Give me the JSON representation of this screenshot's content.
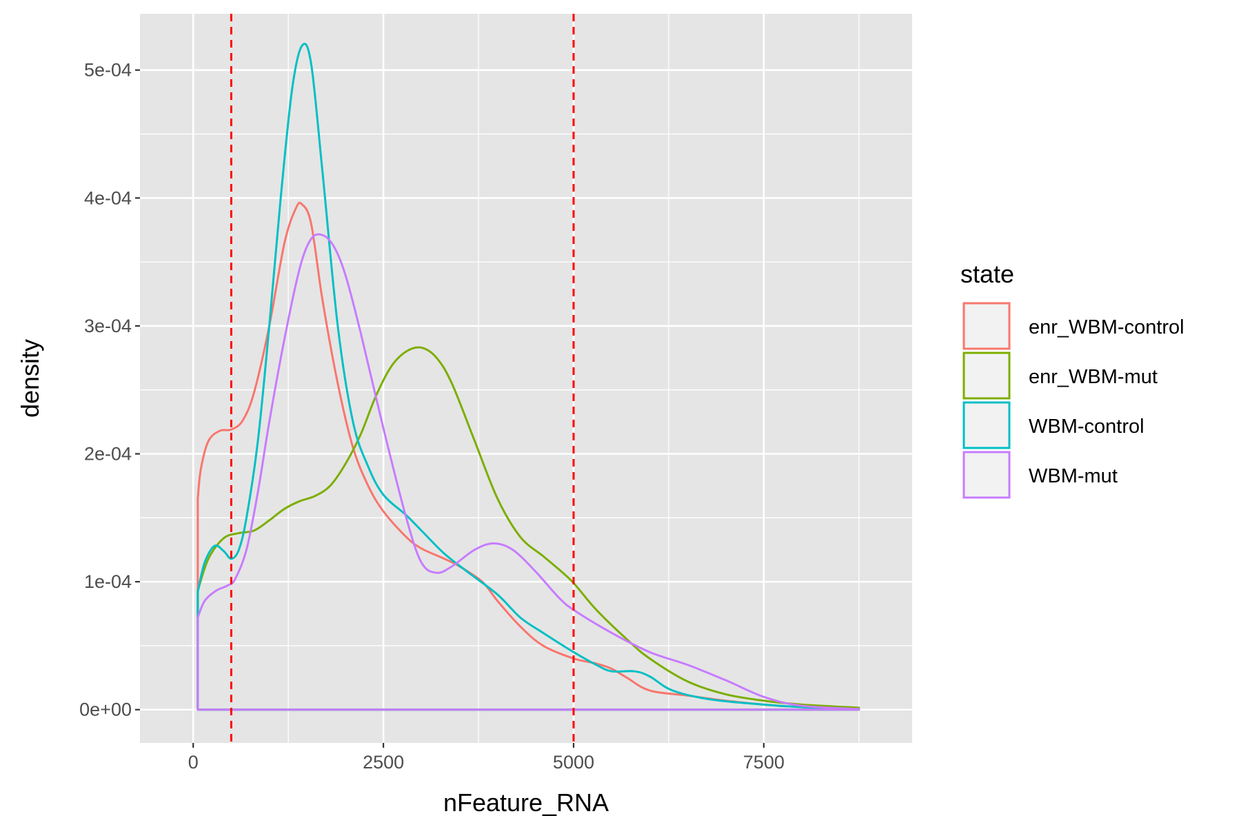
{
  "chart_data": {
    "type": "line",
    "xlabel": "nFeature_RNA",
    "ylabel": "density",
    "xlim": [
      -700,
      9450
    ],
    "ylim": [
      -2.6e-05,
      0.000544
    ],
    "x_ticks": [
      0,
      2500,
      5000,
      7500
    ],
    "x_tick_labels": [
      "0",
      "2500",
      "5000",
      "7500"
    ],
    "y_ticks": [
      0,
      0.0001,
      0.0002,
      0.0003,
      0.0004,
      0.0005
    ],
    "y_tick_labels": [
      "0e+00",
      "1e-04",
      "2e-04",
      "3e-04",
      "4e-04",
      "5e-04"
    ],
    "grid": true,
    "panel_background": "#e5e5e5",
    "legend": {
      "title": "state",
      "placement": "right",
      "entries": [
        "enr_WBM-control",
        "enr_WBM-mut",
        "WBM-control",
        "WBM-mut"
      ]
    },
    "reference_lines": {
      "color": "#ff0000",
      "style": "dashed",
      "x": [
        500,
        5000
      ]
    },
    "x_range": [
      60,
      8750
    ],
    "series": [
      {
        "name": "enr_WBM-control",
        "color": "#F8766D",
        "points": [
          [
            60,
            0.000165
          ],
          [
            100,
            0.000188
          ],
          [
            200,
            0.00021
          ],
          [
            350,
            0.000218
          ],
          [
            500,
            0.000219
          ],
          [
            650,
            0.000226
          ],
          [
            800,
            0.000248
          ],
          [
            1000,
            0.0003
          ],
          [
            1200,
            0.000365
          ],
          [
            1350,
            0.000392
          ],
          [
            1430,
            0.000395
          ],
          [
            1550,
            0.00038
          ],
          [
            1700,
            0.00032
          ],
          [
            1900,
            0.000255
          ],
          [
            2100,
            0.000205
          ],
          [
            2300,
            0.000175
          ],
          [
            2500,
            0.000155
          ],
          [
            2800,
            0.000135
          ],
          [
            3000,
            0.000126
          ],
          [
            3300,
            0.000118
          ],
          [
            3500,
            0.000112
          ],
          [
            3800,
            0.0001
          ],
          [
            4000,
            8.5e-05
          ],
          [
            4300,
            6.5e-05
          ],
          [
            4600,
            5e-05
          ],
          [
            5000,
            4e-05
          ],
          [
            5300,
            3.6e-05
          ],
          [
            5500,
            3.2e-05
          ],
          [
            5700,
            2.5e-05
          ],
          [
            6000,
            1.5e-05
          ],
          [
            6500,
            1.1e-05
          ],
          [
            7000,
            7e-06
          ],
          [
            7500,
            4e-06
          ],
          [
            8000,
            2e-06
          ],
          [
            8750,
            5e-07
          ]
        ]
      },
      {
        "name": "enr_WBM-mut",
        "color": "#7CAE00",
        "points": [
          [
            60,
            9.3e-05
          ],
          [
            200,
            0.000118
          ],
          [
            400,
            0.000134
          ],
          [
            600,
            0.000138
          ],
          [
            800,
            0.00014
          ],
          [
            1000,
            0.000148
          ],
          [
            1200,
            0.000157
          ],
          [
            1400,
            0.000163
          ],
          [
            1600,
            0.000167
          ],
          [
            1800,
            0.000175
          ],
          [
            2000,
            0.000192
          ],
          [
            2200,
            0.000215
          ],
          [
            2400,
            0.000245
          ],
          [
            2600,
            0.000268
          ],
          [
            2800,
            0.00028
          ],
          [
            3000,
            0.000283
          ],
          [
            3200,
            0.000275
          ],
          [
            3400,
            0.000255
          ],
          [
            3700,
            0.00021
          ],
          [
            4000,
            0.000165
          ],
          [
            4300,
            0.000135
          ],
          [
            4600,
            0.00012
          ],
          [
            4800,
            0.00011
          ],
          [
            5000,
            9.9e-05
          ],
          [
            5300,
            7.8e-05
          ],
          [
            5700,
            5.5e-05
          ],
          [
            6000,
            4e-05
          ],
          [
            6500,
            2.2e-05
          ],
          [
            7000,
            1.2e-05
          ],
          [
            7500,
            7e-06
          ],
          [
            8000,
            4e-06
          ],
          [
            8750,
            1.5e-06
          ]
        ]
      },
      {
        "name": "WBM-control",
        "color": "#00BFC4",
        "points": [
          [
            60,
            9.2e-05
          ],
          [
            150,
            0.000115
          ],
          [
            280,
            0.000128
          ],
          [
            400,
            0.000124
          ],
          [
            500,
            0.000118
          ],
          [
            600,
            0.000125
          ],
          [
            700,
            0.00015
          ],
          [
            850,
            0.00021
          ],
          [
            1000,
            0.0003
          ],
          [
            1150,
            0.0004
          ],
          [
            1300,
            0.000485
          ],
          [
            1430,
            0.000519
          ],
          [
            1550,
            0.000505
          ],
          [
            1700,
            0.00042
          ],
          [
            1900,
            0.0003
          ],
          [
            2100,
            0.000225
          ],
          [
            2300,
            0.00019
          ],
          [
            2500,
            0.000168
          ],
          [
            2800,
            0.000152
          ],
          [
            3000,
            0.00014
          ],
          [
            3300,
            0.000122
          ],
          [
            3600,
            0.000108
          ],
          [
            4000,
            9e-05
          ],
          [
            4300,
            7.2e-05
          ],
          [
            4600,
            6e-05
          ],
          [
            5000,
            4.5e-05
          ],
          [
            5300,
            3.5e-05
          ],
          [
            5500,
            3e-05
          ],
          [
            5800,
            3e-05
          ],
          [
            6000,
            2.6e-05
          ],
          [
            6300,
            1.5e-05
          ],
          [
            6800,
            8e-06
          ],
          [
            7500,
            4e-06
          ],
          [
            8000,
            2e-06
          ],
          [
            8750,
            5e-07
          ]
        ]
      },
      {
        "name": "WBM-mut",
        "color": "#C77CFF",
        "points": [
          [
            60,
            7.2e-05
          ],
          [
            150,
            8.5e-05
          ],
          [
            300,
            9.3e-05
          ],
          [
            450,
            9.7e-05
          ],
          [
            550,
            0.000102
          ],
          [
            700,
            0.000125
          ],
          [
            850,
            0.00017
          ],
          [
            1000,
            0.000225
          ],
          [
            1200,
            0.00029
          ],
          [
            1400,
            0.000345
          ],
          [
            1550,
            0.000368
          ],
          [
            1700,
            0.000371
          ],
          [
            1850,
            0.000362
          ],
          [
            2000,
            0.00034
          ],
          [
            2200,
            0.000295
          ],
          [
            2500,
            0.00022
          ],
          [
            2800,
            0.00015
          ],
          [
            3000,
            0.000115
          ],
          [
            3200,
            0.000107
          ],
          [
            3400,
            0.000112
          ],
          [
            3700,
            0.000125
          ],
          [
            3950,
            0.00013
          ],
          [
            4200,
            0.000125
          ],
          [
            4500,
            0.000108
          ],
          [
            4800,
            8.8e-05
          ],
          [
            5000,
            7.8e-05
          ],
          [
            5500,
            6e-05
          ],
          [
            6000,
            4.5e-05
          ],
          [
            6500,
            3.5e-05
          ],
          [
            7000,
            2.3e-05
          ],
          [
            7500,
            1e-05
          ],
          [
            8000,
            3e-06
          ],
          [
            8750,
            5e-07
          ]
        ]
      }
    ]
  }
}
